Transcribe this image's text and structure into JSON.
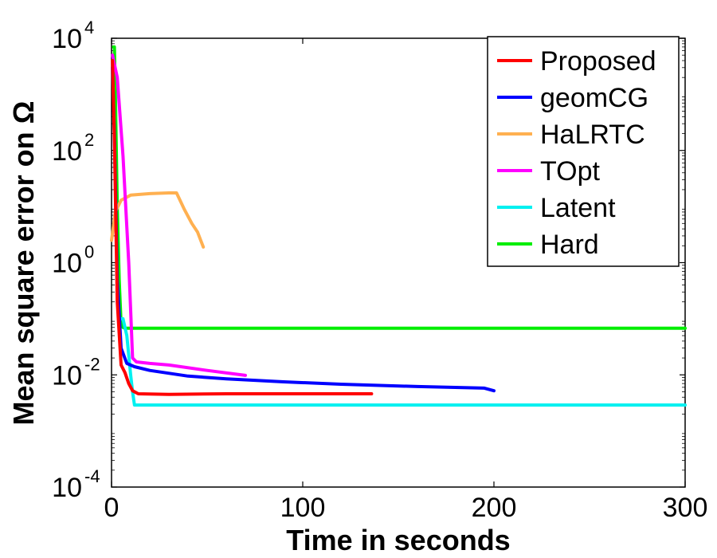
{
  "chart_data": {
    "type": "line",
    "xlabel": "Time in seconds",
    "ylabel": "Mean square error on Ω",
    "xlim": [
      0,
      300
    ],
    "ylim": [
      0.0001,
      10000
    ],
    "yscale": "log",
    "grid": false,
    "legend_position": "top-right",
    "x_ticks": [
      {
        "value": 0,
        "label": "0"
      },
      {
        "value": 100,
        "label": "100"
      },
      {
        "value": 200,
        "label": "200"
      },
      {
        "value": 300,
        "label": "300"
      }
    ],
    "y_ticks": [
      {
        "value": 0.0001,
        "base": "10",
        "exp": "-4"
      },
      {
        "value": 0.01,
        "base": "10",
        "exp": "-2"
      },
      {
        "value": 1,
        "base": "10",
        "exp": "0"
      },
      {
        "value": 100,
        "base": "10",
        "exp": "2"
      },
      {
        "value": 10000,
        "base": "10",
        "exp": "4"
      }
    ],
    "series": [
      {
        "name": "Proposed",
        "color": "#ff0000",
        "x": [
          0.5,
          1.5,
          3,
          5,
          7,
          9,
          11,
          14,
          30,
          60,
          100,
          136
        ],
        "y": [
          4000,
          150,
          0.2,
          0.015,
          0.011,
          0.007,
          0.0052,
          0.0046,
          0.0045,
          0.0046,
          0.0046,
          0.0046
        ]
      },
      {
        "name": "geomCG",
        "color": "#0000ff",
        "x": [
          0.5,
          1.5,
          3,
          5,
          8,
          12,
          20,
          40,
          60,
          90,
          120,
          160,
          195,
          200
        ],
        "y": [
          3000,
          200,
          0.5,
          0.03,
          0.016,
          0.014,
          0.012,
          0.0095,
          0.0085,
          0.0075,
          0.0068,
          0.0062,
          0.0058,
          0.0052
        ]
      },
      {
        "name": "HaLRTC",
        "color": "#ffb050",
        "x": [
          0,
          2,
          5,
          10,
          20,
          30,
          34,
          38,
          42,
          45,
          48
        ],
        "y": [
          2.5,
          8,
          13,
          16,
          17,
          17.5,
          17.5,
          9,
          5,
          3.5,
          1.9
        ]
      },
      {
        "name": "TOpt",
        "color": "#ff00ff",
        "x": [
          0.5,
          3,
          6,
          9,
          11,
          13,
          20,
          30,
          50,
          70
        ],
        "y": [
          5000,
          2000,
          80,
          1,
          0.02,
          0.017,
          0.016,
          0.015,
          0.012,
          0.0098
        ]
      },
      {
        "name": "Latent",
        "color": "#00f0f0",
        "x": [
          4,
          6,
          8,
          10,
          11,
          12,
          300
        ],
        "y": [
          0.1,
          0.1,
          0.05,
          0.01,
          0.005,
          0.0029,
          0.0029
        ]
      },
      {
        "name": "Hard",
        "color": "#00ee00",
        "x": [
          1,
          1.5,
          2,
          3,
          4,
          5,
          6,
          7,
          300
        ],
        "y": [
          7000,
          7000,
          1000,
          10,
          0.5,
          0.08,
          0.07,
          0.068,
          0.068
        ]
      }
    ]
  }
}
